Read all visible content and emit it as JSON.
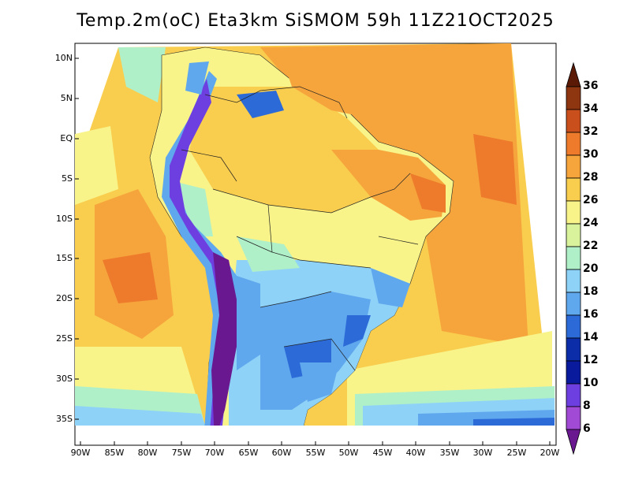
{
  "title": "Temp.2m(oC) Eta3km SiSMOM 59h 11Z21OCT2025",
  "lat_labels": [
    "10N",
    "5N",
    "EQ",
    "5S",
    "10S",
    "15S",
    "20S",
    "25S",
    "30S",
    "35S"
  ],
  "lon_labels": [
    "90W",
    "85W",
    "80W",
    "75W",
    "70W",
    "65W",
    "60W",
    "55W",
    "50W",
    "45W",
    "40W",
    "35W",
    "30W",
    "25W",
    "20W"
  ],
  "colorbar": {
    "labels": [
      "36",
      "34",
      "32",
      "30",
      "28",
      "26",
      "24",
      "22",
      "20",
      "18",
      "16",
      "14",
      "12",
      "10",
      "8",
      "6"
    ],
    "colors": [
      "#5a1a05",
      "#8e3610",
      "#c9501c",
      "#ee7b2c",
      "#f6a53c",
      "#f9cd4d",
      "#f8f48a",
      "#d9f39c",
      "#b0f0c8",
      "#8fd2f7",
      "#5fa8ee",
      "#2c6ad8",
      "#0b2ea8",
      "#0a1a9c",
      "#6e3fe0",
      "#a04ad6",
      "#6a1890"
    ]
  }
}
